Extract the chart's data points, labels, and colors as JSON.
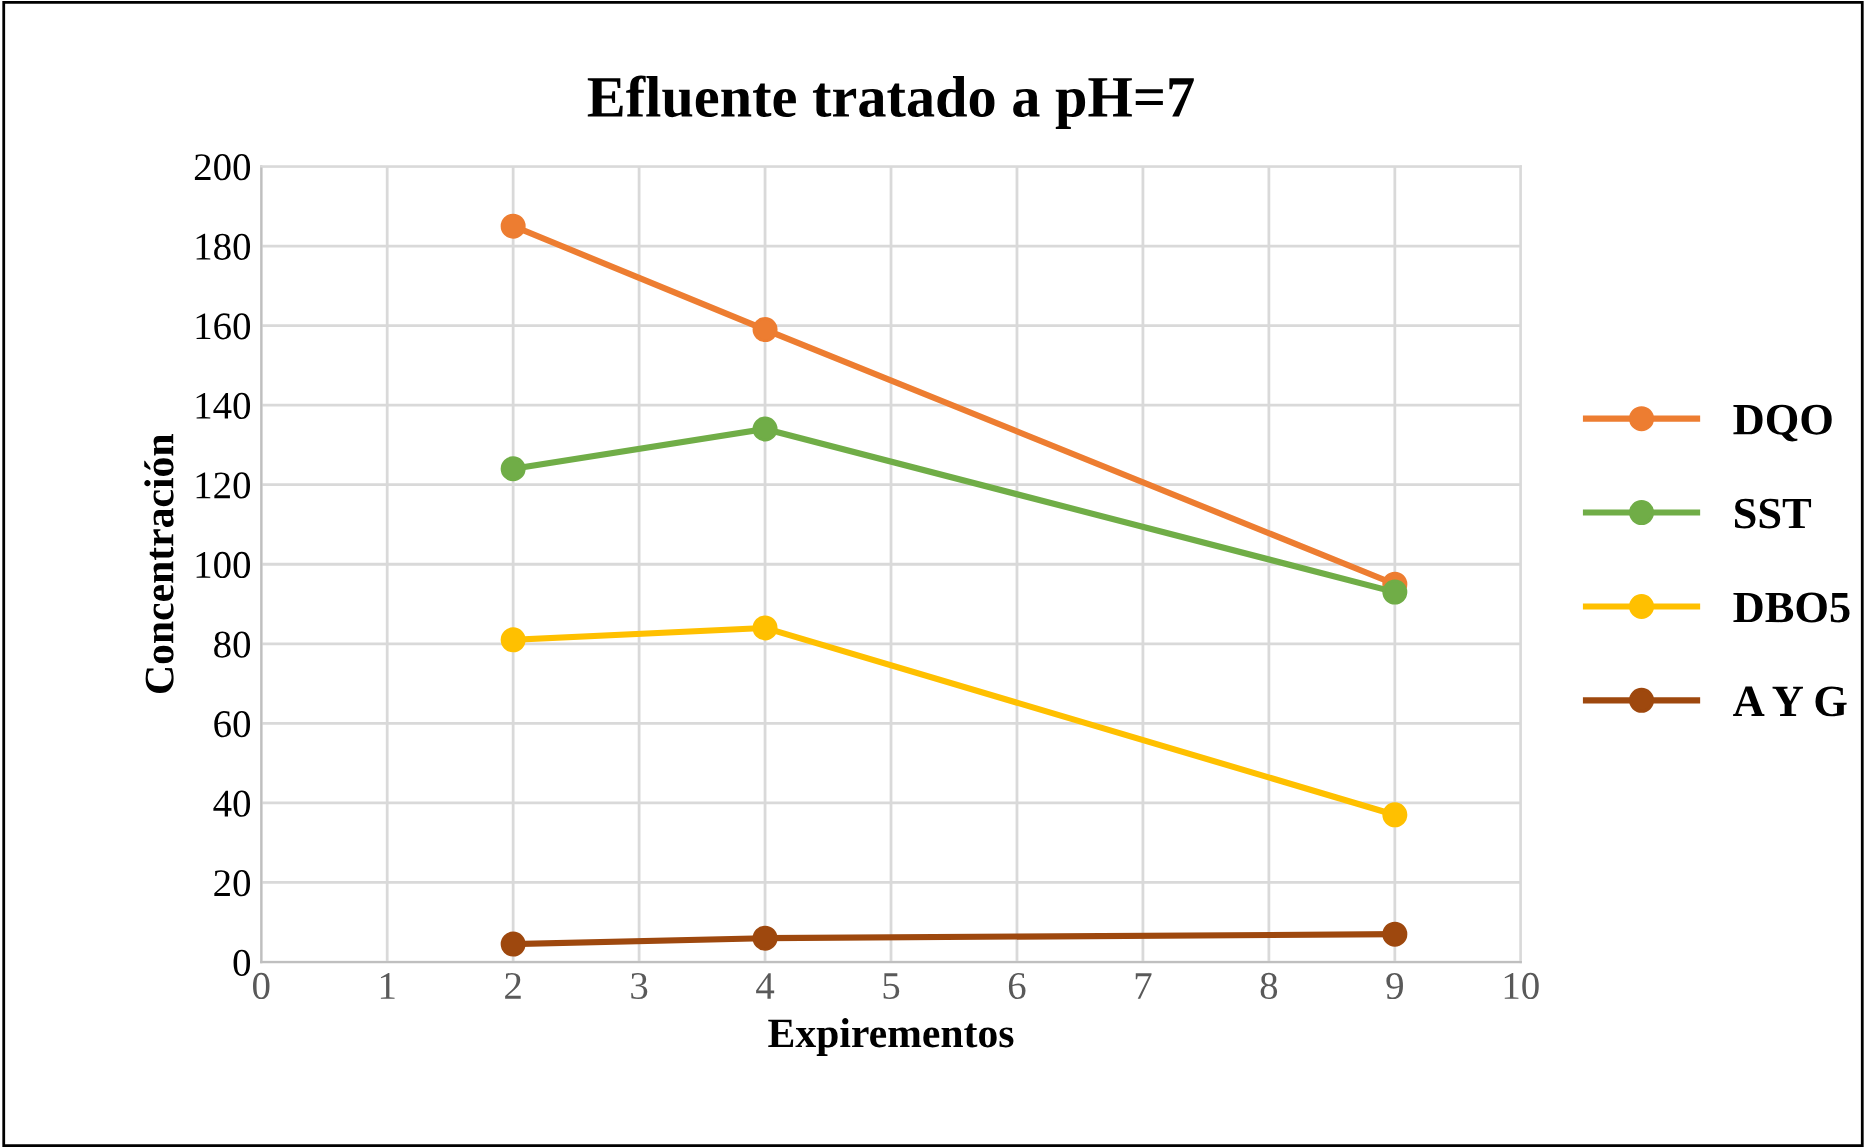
{
  "chart_data": {
    "type": "line",
    "title": "Efluente tratado a pH=7",
    "xlabel": "Expirementos",
    "ylabel": "Concentración",
    "x": [
      2,
      4,
      9
    ],
    "series": [
      {
        "name": "DQO",
        "color": "#ed7d31",
        "values": [
          185,
          159,
          95
        ]
      },
      {
        "name": "SST",
        "color": "#70ad47",
        "values": [
          124,
          134,
          93
        ]
      },
      {
        "name": "DBO5",
        "color": "#ffc000",
        "values": [
          81,
          84,
          37
        ]
      },
      {
        "name": "A Y G",
        "color": "#9e480e",
        "values": [
          4.5,
          6,
          7
        ]
      }
    ],
    "xlim": [
      0,
      10
    ],
    "xticks": [
      0,
      1,
      2,
      3,
      4,
      5,
      6,
      7,
      8,
      9,
      10
    ],
    "ylim": [
      0,
      200
    ],
    "yticks": [
      0,
      20,
      40,
      60,
      80,
      100,
      120,
      140,
      160,
      180,
      200
    ],
    "grid": true,
    "legend": "right",
    "marker": "circle",
    "line_style": "solid"
  }
}
